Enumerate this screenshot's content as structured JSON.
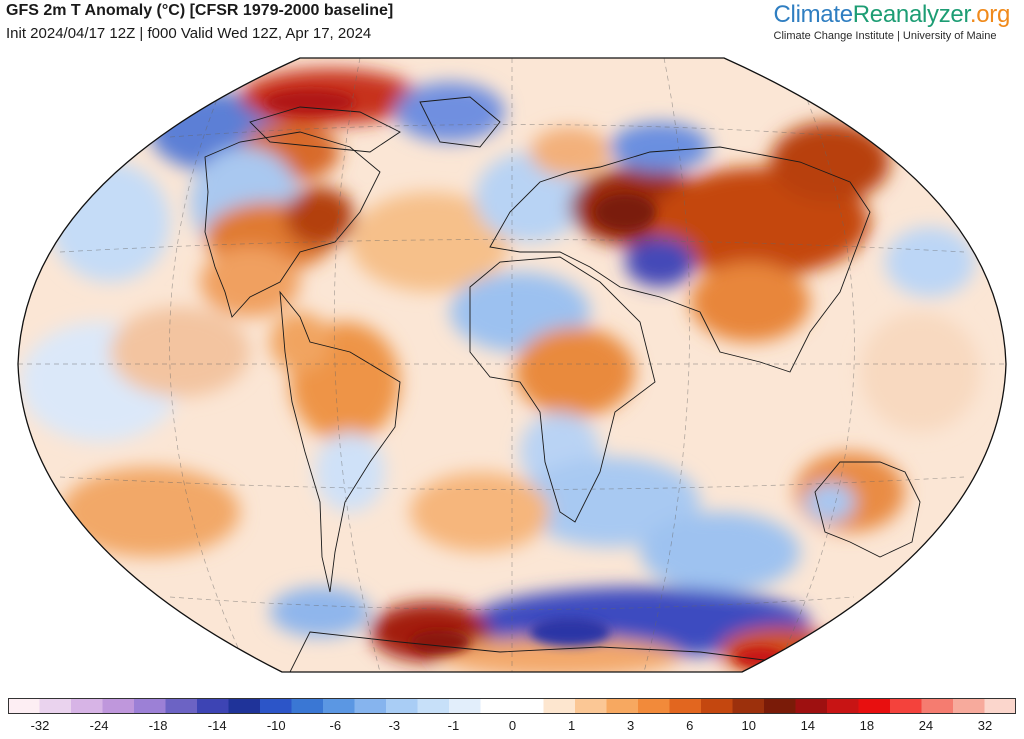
{
  "header": {
    "title": "GFS 2m T Anomaly (°C) [CFSR 1979-2000 baseline]",
    "subtitle": "Init 2024/04/17 12Z | f000 Valid Wed 12Z, Apr 17, 2024"
  },
  "brand": {
    "name_part1": "Climate",
    "name_part2": "Reanalyzer",
    "name_part3": ".org",
    "tagline": "Climate Change Institute | University of Maine",
    "colors": {
      "part1": "#2f7ec1",
      "part2": "#1d9d74",
      "part3": "#f08a1b"
    }
  },
  "map": {
    "projection": "Winkel Tripel",
    "variable": "2m temperature anomaly"
  },
  "colorbar": {
    "labels": [
      "-32",
      "-24",
      "-18",
      "-14",
      "-10",
      "-6",
      "-3",
      "-1",
      "0",
      "1",
      "3",
      "6",
      "10",
      "14",
      "18",
      "24",
      "32"
    ],
    "colors": [
      "#fdeef3",
      "#ead3ee",
      "#d7b4e6",
      "#bf97dc",
      "#9c80d6",
      "#6c63c4",
      "#3d44b4",
      "#1f3399",
      "#2c55c8",
      "#3a77d4",
      "#5b97e3",
      "#86b4ee",
      "#a9cdf5",
      "#c7e0f9",
      "#e2eefb",
      "#ffffff",
      "#ffffff",
      "#fde6cf",
      "#fbc795",
      "#f7a860",
      "#f28a3a",
      "#e2661f",
      "#c4470f",
      "#9c300c",
      "#7a1b08",
      "#9e1010",
      "#c81414",
      "#e80f0f",
      "#f4423c",
      "#f57c70",
      "#f7aa9c",
      "#fbd6cc"
    ]
  }
}
